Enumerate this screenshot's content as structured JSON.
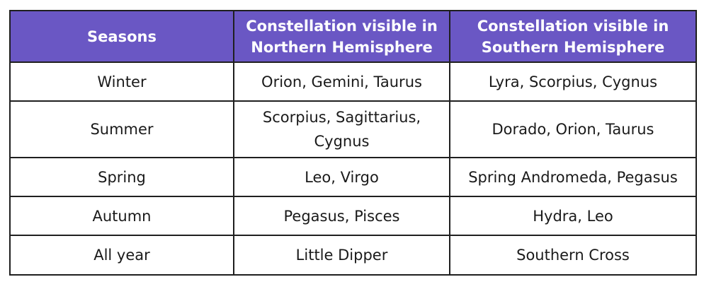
{
  "table": {
    "headers": [
      "Seasons",
      "Constellation visible in Northern Hemisphere",
      "Constellation visible in Southern Hemisphere"
    ],
    "rows": [
      [
        "Winter",
        "Orion, Gemini, Taurus",
        "Lyra, Scorpius, Cygnus"
      ],
      [
        "Summer",
        "Scorpius, Sagittarius, Cygnus",
        "Dorado, Orion, Taurus"
      ],
      [
        "Spring",
        "Leo, Virgo",
        "Spring Andromeda, Pegasus"
      ],
      [
        "Autumn",
        "Pegasus, Pisces",
        "Hydra, Leo"
      ],
      [
        "All year",
        "Little Dipper",
        "Southern Cross"
      ]
    ]
  },
  "colors": {
    "header_background": "#6a57c4",
    "header_text": "#ffffff",
    "border": "#1f1f1f"
  }
}
